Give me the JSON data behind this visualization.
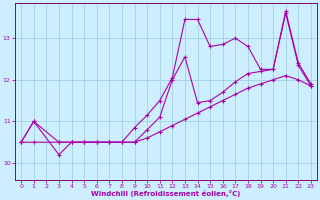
{
  "xlabel": "Windchill (Refroidissement éolien,°C)",
  "bg_color": "#cceeff",
  "grid_color": "#99ccdd",
  "line_color": "#aa00aa",
  "spine_color": "#880088",
  "xlim": [
    -0.5,
    23.5
  ],
  "ylim": [
    9.6,
    13.85
  ],
  "yticks": [
    10,
    11,
    12,
    13
  ],
  "xticks": [
    0,
    1,
    2,
    3,
    4,
    5,
    6,
    7,
    8,
    9,
    10,
    11,
    12,
    13,
    14,
    15,
    16,
    17,
    18,
    19,
    20,
    21,
    22,
    23
  ],
  "lines": [
    {
      "x": [
        0,
        1,
        3,
        4,
        5,
        6,
        7,
        8,
        9,
        10,
        11,
        12,
        13,
        14,
        15,
        16,
        17,
        18,
        19,
        20,
        21,
        22,
        23
      ],
      "y": [
        10.5,
        11.0,
        10.2,
        10.5,
        10.5,
        10.5,
        10.5,
        10.5,
        10.85,
        11.15,
        11.5,
        12.05,
        13.45,
        13.45,
        12.8,
        12.85,
        13.0,
        12.8,
        12.25,
        12.25,
        13.65,
        12.4,
        11.9
      ]
    },
    {
      "x": [
        0,
        1,
        3,
        4,
        5,
        6,
        7,
        8,
        9,
        10,
        11,
        12,
        13,
        14,
        15,
        16,
        17,
        18,
        19,
        20,
        21,
        22,
        23
      ],
      "y": [
        10.5,
        11.0,
        10.5,
        10.5,
        10.5,
        10.5,
        10.5,
        10.5,
        10.5,
        10.8,
        11.1,
        12.0,
        12.55,
        11.45,
        11.5,
        11.7,
        11.95,
        12.15,
        12.2,
        12.25,
        13.6,
        12.35,
        11.85
      ]
    },
    {
      "x": [
        0,
        1,
        3,
        4,
        5,
        6,
        7,
        8,
        9,
        10,
        11,
        12,
        13,
        14,
        15,
        16,
        17,
        18,
        19,
        20,
        21,
        22,
        23
      ],
      "y": [
        10.5,
        10.5,
        10.5,
        10.5,
        10.5,
        10.5,
        10.5,
        10.5,
        10.5,
        10.6,
        10.75,
        10.9,
        11.05,
        11.2,
        11.35,
        11.5,
        11.65,
        11.8,
        11.9,
        12.0,
        12.1,
        12.0,
        11.85
      ]
    }
  ]
}
